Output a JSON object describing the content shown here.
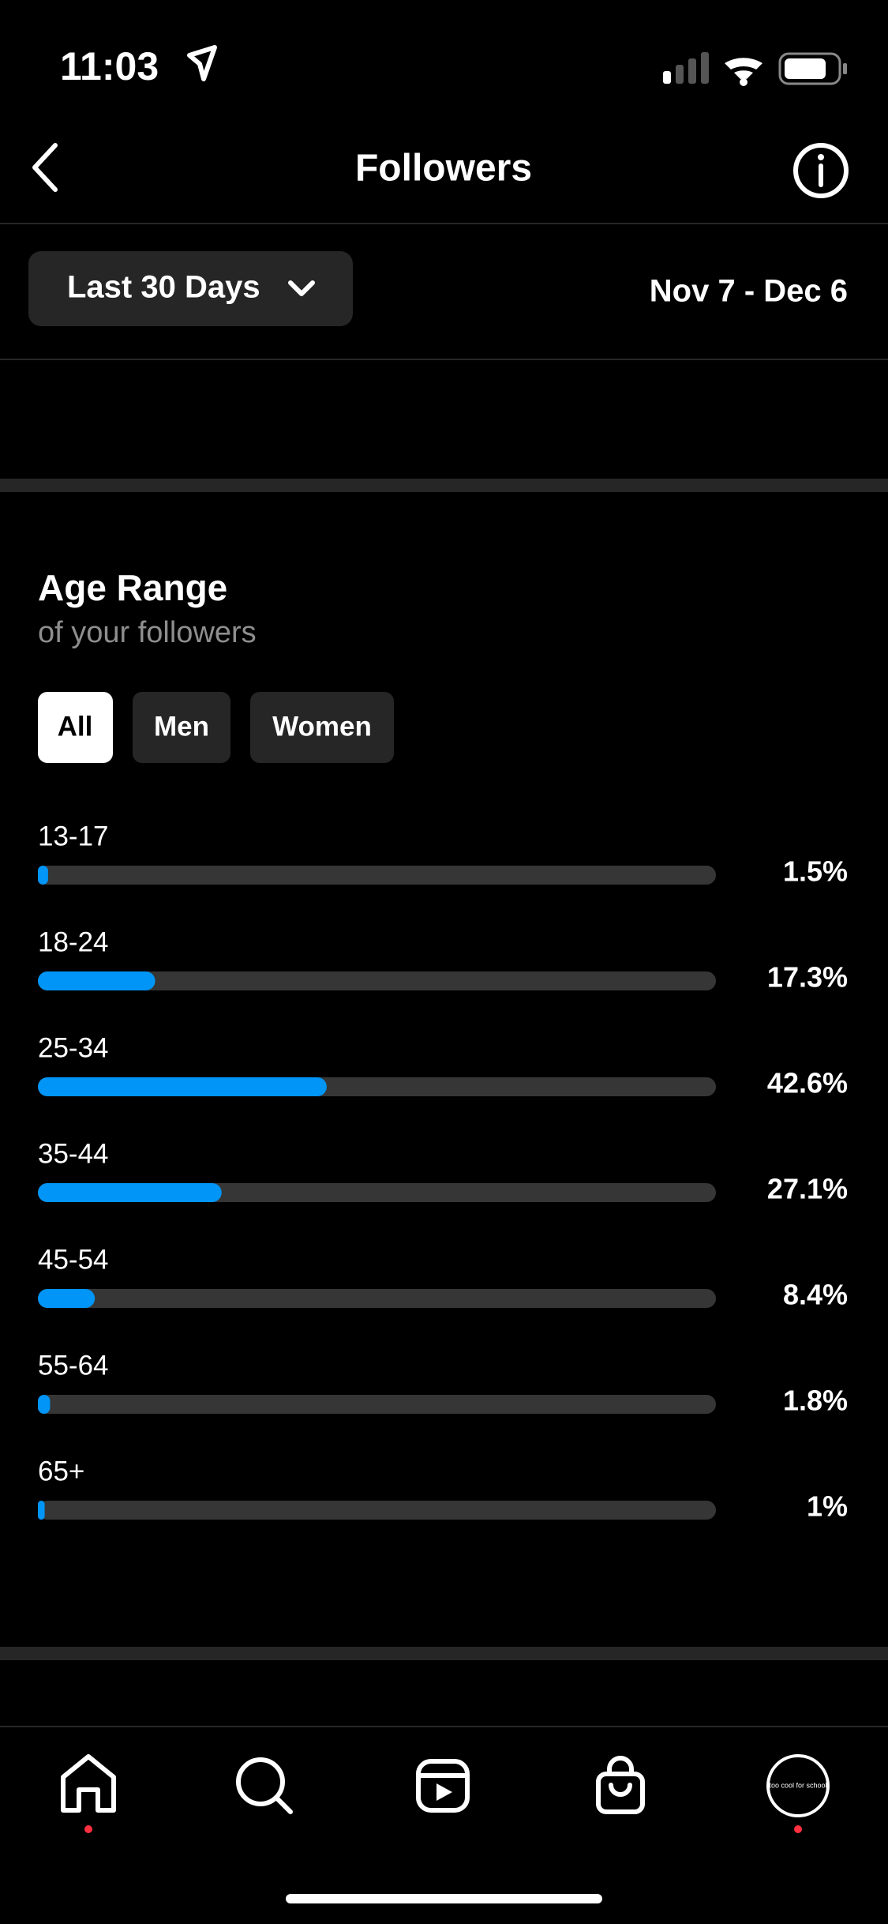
{
  "status_bar": {
    "time": "11:03"
  },
  "header": {
    "title": "Followers"
  },
  "filter": {
    "period": "Last 30 Days",
    "date_range": "Nov 7 - Dec 6"
  },
  "section": {
    "title": "Age Range",
    "subtitle": "of your followers",
    "tabs": [
      "All",
      "Men",
      "Women"
    ]
  },
  "chart_data": {
    "type": "bar",
    "orientation": "horizontal",
    "categories": [
      "13-17",
      "18-24",
      "25-34",
      "35-44",
      "45-54",
      "55-64",
      "65+"
    ],
    "values": [
      1.5,
      17.3,
      42.6,
      27.1,
      8.4,
      1.8,
      1
    ],
    "value_labels": [
      "1.5%",
      "17.3%",
      "42.6%",
      "27.1%",
      "8.4%",
      "1.8%",
      "1%"
    ],
    "xlim": [
      0,
      100
    ],
    "color": "#0095f6",
    "track_color": "#363636"
  },
  "nav": {
    "profile_text": "too cool for school"
  }
}
